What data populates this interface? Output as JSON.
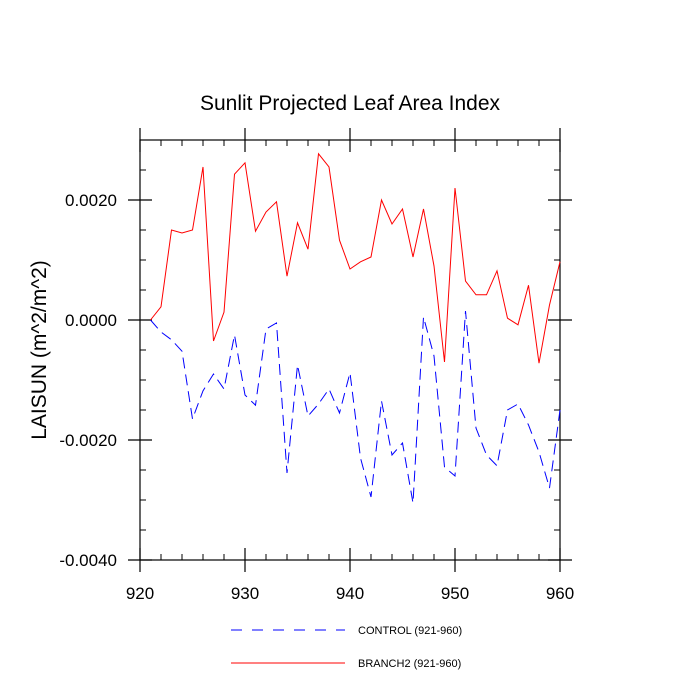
{
  "chart_data": {
    "type": "line",
    "title": "Sunlit Projected Leaf Area Index",
    "ylabel": "LAISUN  (m^2/m^2)",
    "xlim": [
      920,
      960
    ],
    "ylim": [
      -0.004,
      0.003
    ],
    "x_ticks": [
      {
        "value": 920,
        "label": "920"
      },
      {
        "value": 930,
        "label": "930"
      },
      {
        "value": 940,
        "label": "940"
      },
      {
        "value": 950,
        "label": "950"
      },
      {
        "value": 960,
        "label": "960"
      }
    ],
    "y_ticks": [
      {
        "value": -0.004,
        "label": "-0.0040"
      },
      {
        "value": -0.002,
        "label": "-0.0020"
      },
      {
        "value": 0.0,
        "label": "0.0000"
      },
      {
        "value": 0.002,
        "label": "0.0020"
      }
    ],
    "x": [
      921,
      922,
      923,
      924,
      925,
      926,
      927,
      928,
      929,
      930,
      931,
      932,
      933,
      934,
      935,
      936,
      937,
      938,
      939,
      940,
      941,
      942,
      943,
      944,
      945,
      946,
      947,
      948,
      949,
      950,
      951,
      952,
      953,
      954,
      955,
      956,
      957,
      958,
      959,
      960
    ],
    "series": [
      {
        "name": "CONTROL (921-960)",
        "color": "#0000ff",
        "dash": "dashed",
        "values": [
          0.0,
          -0.0002,
          -0.00033,
          -0.00052,
          -0.00165,
          -0.00118,
          -0.0009,
          -0.00115,
          -0.00025,
          -0.00125,
          -0.00142,
          -0.00015,
          -5e-05,
          -0.00255,
          -0.00075,
          -0.0016,
          -0.0014,
          -0.00115,
          -0.00155,
          -0.00088,
          -0.0023,
          -0.00295,
          -0.00135,
          -0.00225,
          -0.00205,
          -0.00305,
          5e-05,
          -0.0006,
          -0.00245,
          -0.0026,
          0.00015,
          -0.0018,
          -0.00225,
          -0.00243,
          -0.0015,
          -0.0014,
          -0.00175,
          -0.0022,
          -0.0028,
          -0.0015
        ]
      },
      {
        "name": "BRANCH2 (921-960)",
        "color": "#ff0000",
        "dash": "solid",
        "values": [
          0.0,
          0.00022,
          0.0015,
          0.00145,
          0.0015,
          0.00255,
          -0.00035,
          0.00013,
          0.00243,
          0.00262,
          0.00148,
          0.0018,
          0.00197,
          0.00073,
          0.00162,
          0.00118,
          0.00277,
          0.00255,
          0.00133,
          0.00085,
          0.00097,
          0.00105,
          0.002,
          0.0016,
          0.00185,
          0.00105,
          0.00185,
          0.0009,
          -0.0007,
          0.0022,
          0.00065,
          0.00042,
          0.00042,
          0.00082,
          3e-05,
          -8e-05,
          0.00058,
          -0.00072,
          0.00025,
          0.00097
        ]
      }
    ]
  }
}
